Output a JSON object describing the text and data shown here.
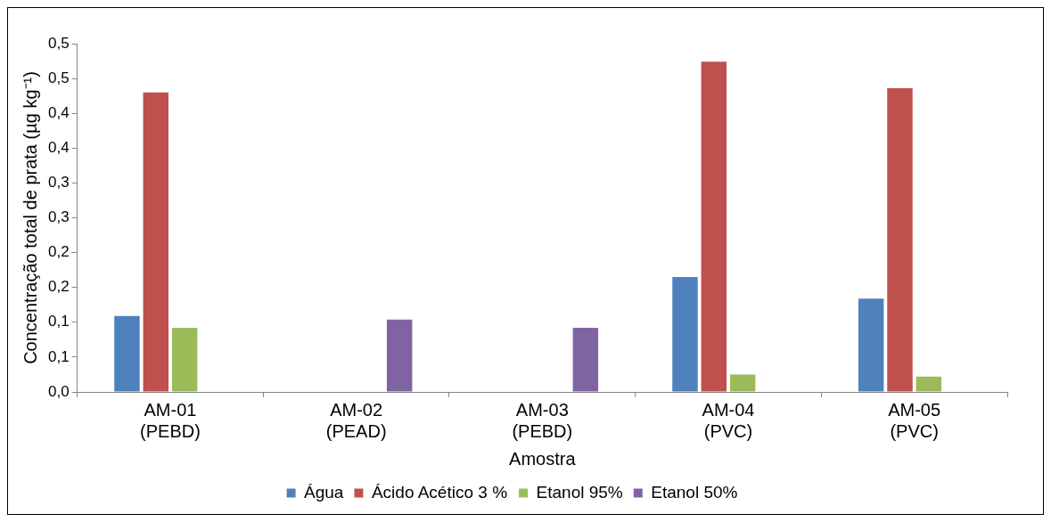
{
  "chart_data": {
    "type": "bar",
    "xlabel": "Amostra",
    "ylabel": "Concentração total de prata (µg kg⁻¹)",
    "categories": [
      "AM-01\n(PEBD)",
      "AM-02\n(PEAD)",
      "AM-03\n(PEBD)",
      "AM-04\n(PVC)",
      "AM-05\n(PVC)"
    ],
    "series": [
      {
        "name": "Água",
        "color": "#4f81bd",
        "values": [
          0.109,
          0,
          0,
          0.165,
          0.134
        ]
      },
      {
        "name": "Ácido Acético 3 %",
        "color": "#c0504d",
        "values": [
          0.43,
          0,
          0,
          0.474,
          0.436
        ]
      },
      {
        "name": "Etanol 95%",
        "color": "#9bbb59",
        "values": [
          0.092,
          0,
          0,
          0.025,
          0.022
        ]
      },
      {
        "name": "Etanol 50%",
        "color": "#8064a2",
        "values": [
          0,
          0.104,
          0.092,
          0,
          0
        ]
      }
    ],
    "ylim": [
      0,
      0.5
    ],
    "yticks": [
      {
        "value": 0,
        "label": "0,0"
      },
      {
        "value": 0.05,
        "label": "0,1"
      },
      {
        "value": 0.1,
        "label": "0,1"
      },
      {
        "value": 0.15,
        "label": "0,2"
      },
      {
        "value": 0.2,
        "label": "0,2"
      },
      {
        "value": 0.25,
        "label": "0,3"
      },
      {
        "value": 0.3,
        "label": "0,3"
      },
      {
        "value": 0.35,
        "label": "0,4"
      },
      {
        "value": 0.4,
        "label": "0,4"
      },
      {
        "value": 0.45,
        "label": "0,5"
      },
      {
        "value": 0.5,
        "label": "0,5"
      }
    ],
    "grid": false,
    "legend": "bottom"
  }
}
